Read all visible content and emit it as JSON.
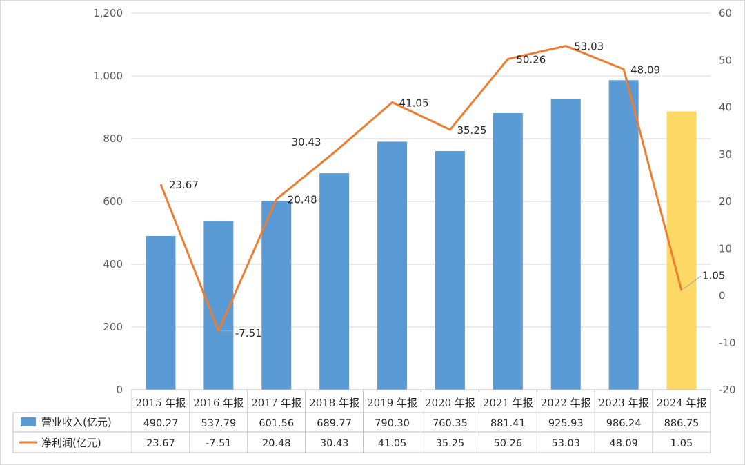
{
  "chart_data": {
    "type": "bar",
    "categories": [
      "2015 年报",
      "2016 年报",
      "2017 年报",
      "2018 年报",
      "2019 年报",
      "2020 年报",
      "2021 年报",
      "2022 年报",
      "2023 年报",
      "2024 年报"
    ],
    "series": [
      {
        "name": "营业收入(亿元)",
        "type": "bar",
        "axis": "left",
        "color": "#5B9BD5",
        "highlight_color": "#FFD966",
        "highlight_index": 9,
        "values": [
          490.27,
          537.79,
          601.56,
          689.77,
          790.3,
          760.35,
          881.41,
          925.93,
          986.24,
          886.75
        ],
        "display": [
          "490.27",
          "537.79",
          "601.56",
          "689.77",
          "790.30",
          "760.35",
          "881.41",
          "925.93",
          "986.24",
          "886.75"
        ]
      },
      {
        "name": "净利润(亿元)",
        "type": "line",
        "axis": "right",
        "color": "#ED7D31",
        "values": [
          23.67,
          -7.51,
          20.48,
          30.43,
          41.05,
          35.25,
          50.26,
          53.03,
          48.09,
          1.05
        ],
        "display": [
          "23.67",
          "-7.51",
          "20.48",
          "30.43",
          "41.05",
          "35.25",
          "50.26",
          "53.03",
          "48.09",
          "1.05"
        ]
      }
    ],
    "y_left": {
      "ylim": [
        0,
        1200
      ],
      "ticks": [
        "0",
        "200",
        "400",
        "600",
        "800",
        "1,000",
        "1,200"
      ]
    },
    "y_right": {
      "ylim": [
        -20,
        60
      ],
      "ticks": [
        "-20",
        "-10",
        "0",
        "10",
        "20",
        "30",
        "40",
        "50",
        "60"
      ]
    },
    "data_table": true,
    "grid": true
  }
}
